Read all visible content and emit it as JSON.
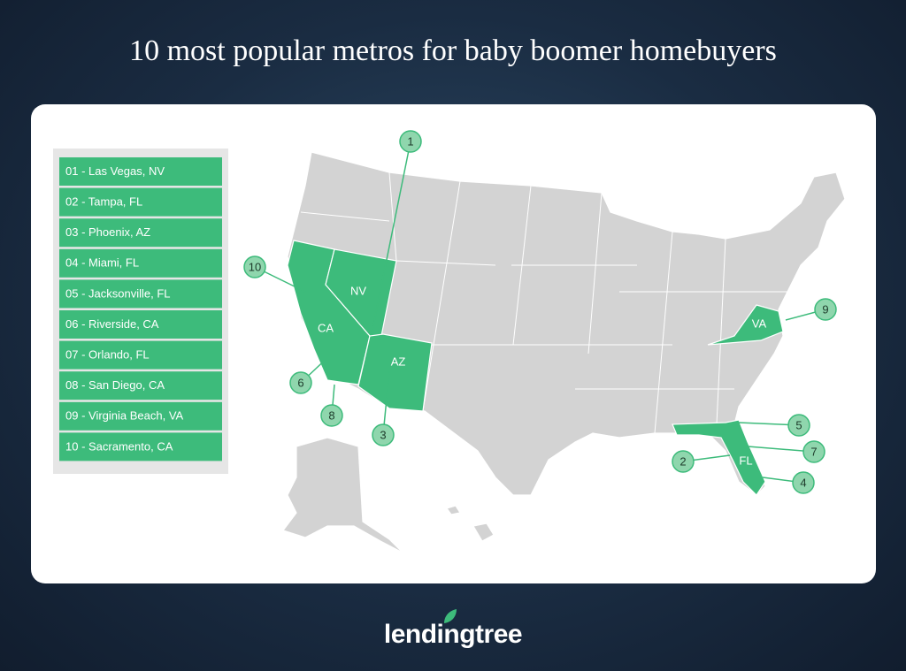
{
  "title": "10 most popular metros for baby boomer homebuyers",
  "legend": {
    "items": [
      "01 - Las Vegas, NV",
      "02 - Tampa, FL",
      "03 - Phoenix, AZ",
      "04 - Miami, FL",
      "05 - Jacksonville, FL",
      "06 - Riverside, CA",
      "07 - Orlando, FL",
      "08 - San Diego, CA",
      "09 - Virginia Beach, VA",
      "10 - Sacramento, CA"
    ]
  },
  "map": {
    "state_labels": [
      "NV",
      "CA",
      "AZ",
      "VA",
      "FL"
    ],
    "callouts": [
      "1",
      "2",
      "3",
      "4",
      "5",
      "6",
      "7",
      "8",
      "9",
      "10"
    ]
  },
  "logo": {
    "text": "lendingtree"
  }
}
